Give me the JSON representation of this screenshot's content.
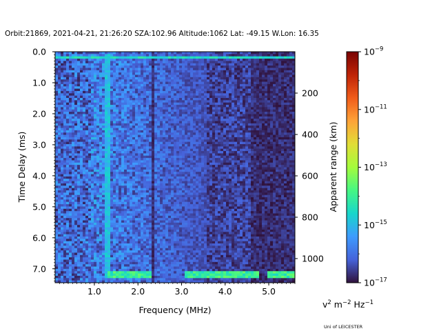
{
  "title": "Orbit:21869, 2021-04-21, 21:26:20 SZA:102.96 Altitude:1062 Lat: -49.15 W.Lon: 16.35",
  "credit": "Uni of LEICESTER",
  "chart_data": {
    "type": "heatmap",
    "xlabel": "Frequency (MHz)",
    "ylabel": "Time Delay (ms)",
    "y2label": "Apparent range (km)",
    "colorbar_label": {
      "base": "v",
      "sup1": "2",
      "mid": " m",
      "sup2": "−2",
      "end": " Hz",
      "sup3": "−1"
    },
    "xlim": [
      0.1,
      5.6
    ],
    "ylim": [
      7.45,
      0.0
    ],
    "xticks": [
      {
        "value": 1.0,
        "label": "1.0"
      },
      {
        "value": 2.0,
        "label": "2.0"
      },
      {
        "value": 3.0,
        "label": "3.0"
      },
      {
        "value": 4.0,
        "label": "4.0"
      },
      {
        "value": 5.0,
        "label": "5.0"
      }
    ],
    "yticks": [
      {
        "value": 0.0,
        "label": "0.0"
      },
      {
        "value": 1.0,
        "label": "1.0"
      },
      {
        "value": 2.0,
        "label": "2.0"
      },
      {
        "value": 3.0,
        "label": "3.0"
      },
      {
        "value": 4.0,
        "label": "4.0"
      },
      {
        "value": 5.0,
        "label": "5.0"
      },
      {
        "value": 6.0,
        "label": "6.0"
      },
      {
        "value": 7.0,
        "label": "7.0"
      }
    ],
    "y2ticks": [
      {
        "value": 200,
        "label": "200"
      },
      {
        "value": 400,
        "label": "400"
      },
      {
        "value": 600,
        "label": "600"
      },
      {
        "value": 800,
        "label": "800"
      },
      {
        "value": 1000,
        "label": "1000"
      }
    ],
    "colorbar": {
      "scale": "log",
      "range": [
        1e-17,
        1e-09
      ],
      "ticks": [
        {
          "exp": -9,
          "label": "10",
          "sup": "−9"
        },
        {
          "exp": -11,
          "label": "10",
          "sup": "−11"
        },
        {
          "exp": -13,
          "label": "10",
          "sup": "−13"
        },
        {
          "exp": -15,
          "label": "10",
          "sup": "−15"
        },
        {
          "exp": -17,
          "label": "10",
          "sup": "−17"
        }
      ]
    },
    "colormap": "turbo",
    "features": {
      "bright_row_delay_ms": 0.2,
      "bright_row_2_delay_ms": 7.2,
      "bright_row_2_ranges_mhz": [
        [
          1.3,
          2.3
        ],
        [
          3.1,
          4.8
        ],
        [
          4.95,
          5.6
        ]
      ],
      "vertical_line_freq_mhz": 1.3,
      "dark_column_freq_mhz": 2.35
    }
  }
}
